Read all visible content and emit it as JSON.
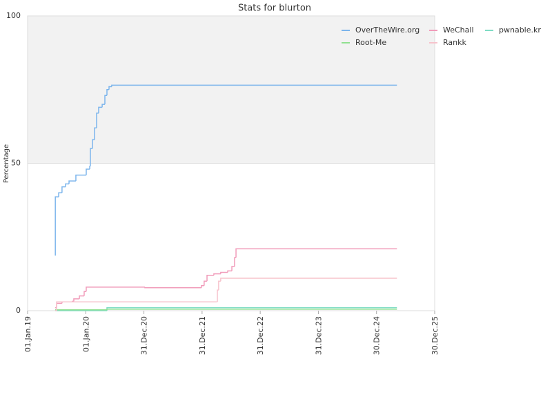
{
  "chart_data": {
    "type": "line",
    "title": "Stats for blurton",
    "ylabel": "Percentage",
    "xlim": [
      "2019-01-01",
      "2025-12-30"
    ],
    "xticks": [
      {
        "value": "2019-01-01",
        "label": "01.Jan.19"
      },
      {
        "value": "2020-01-01",
        "label": "01.Jan.20"
      },
      {
        "value": "2020-12-31",
        "label": "31.Dec.20"
      },
      {
        "value": "2021-12-31",
        "label": "31.Dec.21"
      },
      {
        "value": "2022-12-31",
        "label": "31.Dec.22"
      },
      {
        "value": "2023-12-31",
        "label": "31.Dec.23"
      },
      {
        "value": "2024-12-30",
        "label": "30.Dec.24"
      },
      {
        "value": "2025-12-30",
        "label": "30.Dec.25"
      }
    ],
    "ylim": [
      0,
      100
    ],
    "yticks": [
      0,
      50,
      100
    ],
    "grid": true,
    "step": true,
    "legend": "top-right",
    "series": [
      {
        "name": "OverTheWire.org",
        "color": "#7cb5ec",
        "x": [
          "2019-06-23",
          "2019-06-24",
          "2019-07-15",
          "2019-08-05",
          "2019-08-27",
          "2019-09-18",
          "2019-10-31",
          "2020-01-04",
          "2020-01-26",
          "2020-01-30",
          "2020-02-12",
          "2020-02-25",
          "2020-03-09",
          "2020-03-22",
          "2020-04-13",
          "2020-04-30",
          "2020-05-13",
          "2020-05-26",
          "2020-06-12",
          "2025-05-07"
        ],
        "values": [
          18.7,
          38.6,
          40,
          42,
          43,
          44,
          46,
          48,
          49,
          55,
          58,
          62,
          67,
          69,
          70,
          73,
          75,
          76,
          76.5,
          76.5
        ]
      },
      {
        "name": "WeChall",
        "color": "#f19cba",
        "x": [
          "2019-06-23",
          "2019-07-02",
          "2019-08-05",
          "2019-10-09",
          "2019-10-18",
          "2019-11-22",
          "2019-12-22",
          "2020-01-04",
          "2021-01-06",
          "2021-12-27",
          "2022-01-13",
          "2022-01-31",
          "2022-03-15",
          "2022-04-27",
          "2022-06-10",
          "2022-07-06",
          "2022-07-23",
          "2022-08-01",
          "2025-05-07"
        ],
        "values": [
          1,
          2.5,
          3,
          3.2,
          4,
          5,
          6.5,
          8,
          7.8,
          8.5,
          10,
          12,
          12.5,
          13,
          13.5,
          15,
          18,
          21,
          21
        ]
      },
      {
        "name": "pwnable.kr",
        "color": "#7fdcc4",
        "x": [
          "2019-06-23",
          "2020-05-13",
          "2025-05-07"
        ],
        "values": [
          0,
          1,
          1
        ]
      },
      {
        "name": "Root-Me",
        "color": "#90e090",
        "x": [
          "2019-06-23",
          "2020-05-13",
          "2025-05-07"
        ],
        "values": [
          0.3,
          0.5,
          0.5
        ]
      },
      {
        "name": "Rankk",
        "color": "#f7c3cc",
        "x": [
          "2019-06-23",
          "2019-07-02",
          "2022-04-01",
          "2022-04-06",
          "2022-04-14",
          "2022-04-27",
          "2025-05-07"
        ],
        "values": [
          0,
          3,
          3,
          7,
          10,
          11,
          11
        ]
      }
    ]
  }
}
